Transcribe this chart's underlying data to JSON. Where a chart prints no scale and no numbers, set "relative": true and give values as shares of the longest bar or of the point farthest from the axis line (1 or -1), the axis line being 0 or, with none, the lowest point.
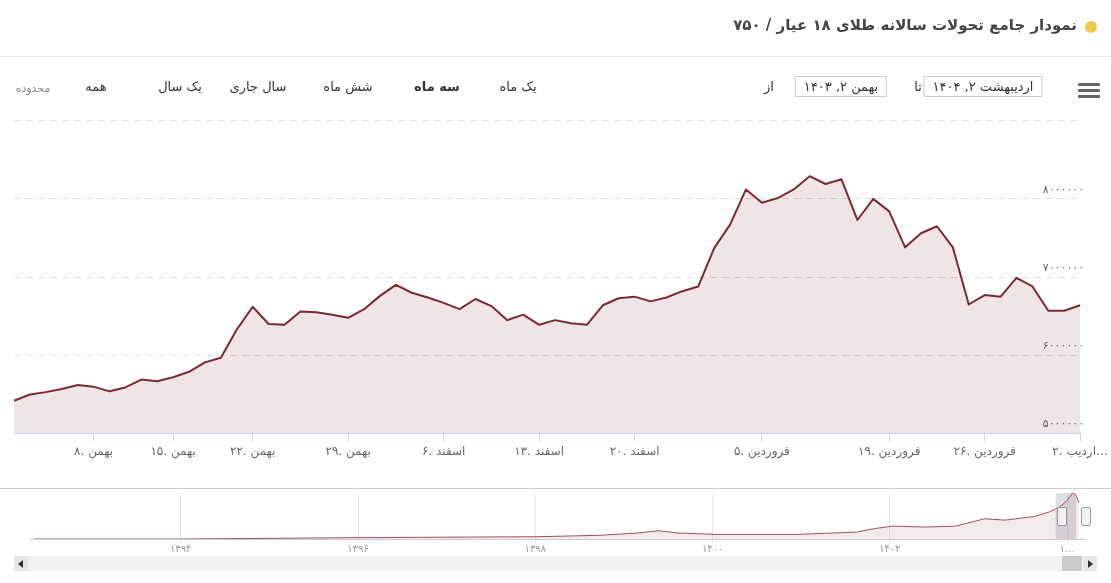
{
  "chart_data": [
    {
      "type": "area",
      "title": "نمودار جامع تحولات سالانه طلای ۱۸ عیار / ۷۵۰",
      "annotations": [
        "محدوده",
        "همه",
        "یک سال",
        "سال جاری",
        "شش ماه",
        "سه ماه",
        "یک ماه",
        "از",
        "بهمن ۲, ۱۴۰۳",
        "تا",
        "اردیبهشت ۲, ۱۴۰۴"
      ],
      "categories": [
        null,
        null,
        null,
        null,
        null,
        "۸. بهمن",
        null,
        null,
        null,
        null,
        "۱۵. بهمن",
        null,
        null,
        null,
        null,
        "۲۲. بهمن",
        null,
        null,
        null,
        null,
        null,
        "۲۹. بهمن",
        null,
        null,
        null,
        null,
        null,
        "۶. اسفند",
        null,
        null,
        null,
        null,
        null,
        "۱۳. اسفند",
        null,
        null,
        null,
        null,
        null,
        "۲۰. اسفند",
        null,
        null,
        null,
        null,
        null,
        null,
        null,
        "۵. فروردین",
        null,
        null,
        null,
        null,
        null,
        null,
        null,
        "۱۹. فروردین",
        null,
        null,
        null,
        null,
        null,
        "۲۶. فروردین",
        null,
        null,
        null,
        null,
        null,
        "۲. اردیب…"
      ],
      "values": [
        5420000,
        5500000,
        5530000,
        5570000,
        5620000,
        5600000,
        5540000,
        5590000,
        5690000,
        5670000,
        5720000,
        5790000,
        5910000,
        5970000,
        6330000,
        6620000,
        6400000,
        6390000,
        6560000,
        6550000,
        6520000,
        6480000,
        6590000,
        6760000,
        6900000,
        6800000,
        6740000,
        6670000,
        6590000,
        6720000,
        6630000,
        6450000,
        6520000,
        6390000,
        6450000,
        6410000,
        6390000,
        6640000,
        6730000,
        6750000,
        6690000,
        6740000,
        6820000,
        6880000,
        7370000,
        7670000,
        8120000,
        7950000,
        8010000,
        8120000,
        8290000,
        8190000,
        8250000,
        7730000,
        8000000,
        7840000,
        7380000,
        7560000,
        7650000,
        7380000,
        6650000,
        6770000,
        6750000,
        6990000,
        6880000,
        6570000,
        6570000,
        6640000
      ],
      "color": "#7b2a35",
      "ylim": [
        5000000,
        9000000
      ],
      "yticks": [
        {
          "value": 5000000,
          "label": "۵۰۰۰۰۰۰"
        },
        {
          "value": 6000000,
          "label": "۶۰۰۰۰۰۰"
        },
        {
          "value": 7000000,
          "label": "۷۰۰۰۰۰۰"
        },
        {
          "value": 8000000,
          "label": "۸۰۰۰۰۰۰"
        },
        {
          "value": 9000000,
          "label": null
        }
      ],
      "grid": "y"
    },
    {
      "type": "area",
      "relative": true,
      "x": [
        1392.35,
        1394.02,
        1396.03,
        1398.04,
        1398.72,
        1399.16,
        1399.39,
        1399.61,
        1400.03,
        1400.95,
        1401.62,
        1401.84,
        1402.03,
        1402.4,
        1402.74,
        1403.07,
        1403.3,
        1403.63,
        1403.8,
        1403.91,
        1403.99,
        1404.06,
        1404.1,
        1404.13
      ],
      "values": [
        0,
        0,
        0.03,
        0.05,
        0.08,
        0.13,
        0.18,
        0.13,
        0.1,
        0.1,
        0.15,
        0.23,
        0.28,
        0.26,
        0.28,
        0.44,
        0.41,
        0.49,
        0.59,
        0.69,
        0.82,
        1,
        0.95,
        0.79
      ],
      "color": "#a0505e",
      "xlim": [
        1392.3,
        1404.2
      ],
      "xticks": [
        {
          "value": 1394,
          "label": "۱۳۹۴"
        },
        {
          "value": 1396,
          "label": "۱۳۹۶"
        },
        {
          "value": 1398,
          "label": "۱۳۹۸"
        },
        {
          "value": 1400,
          "label": "۱۴۰۰"
        },
        {
          "value": 1402,
          "label": "۱۴۰۲"
        },
        {
          "value": 1404,
          "label": "۱…"
        }
      ],
      "bands": [
        {
          "axis": "x",
          "from": 1403.87,
          "to": 1404.1,
          "color": "#788296"
        }
      ],
      "grid": "x",
      "tick_labels": "x"
    }
  ]
}
